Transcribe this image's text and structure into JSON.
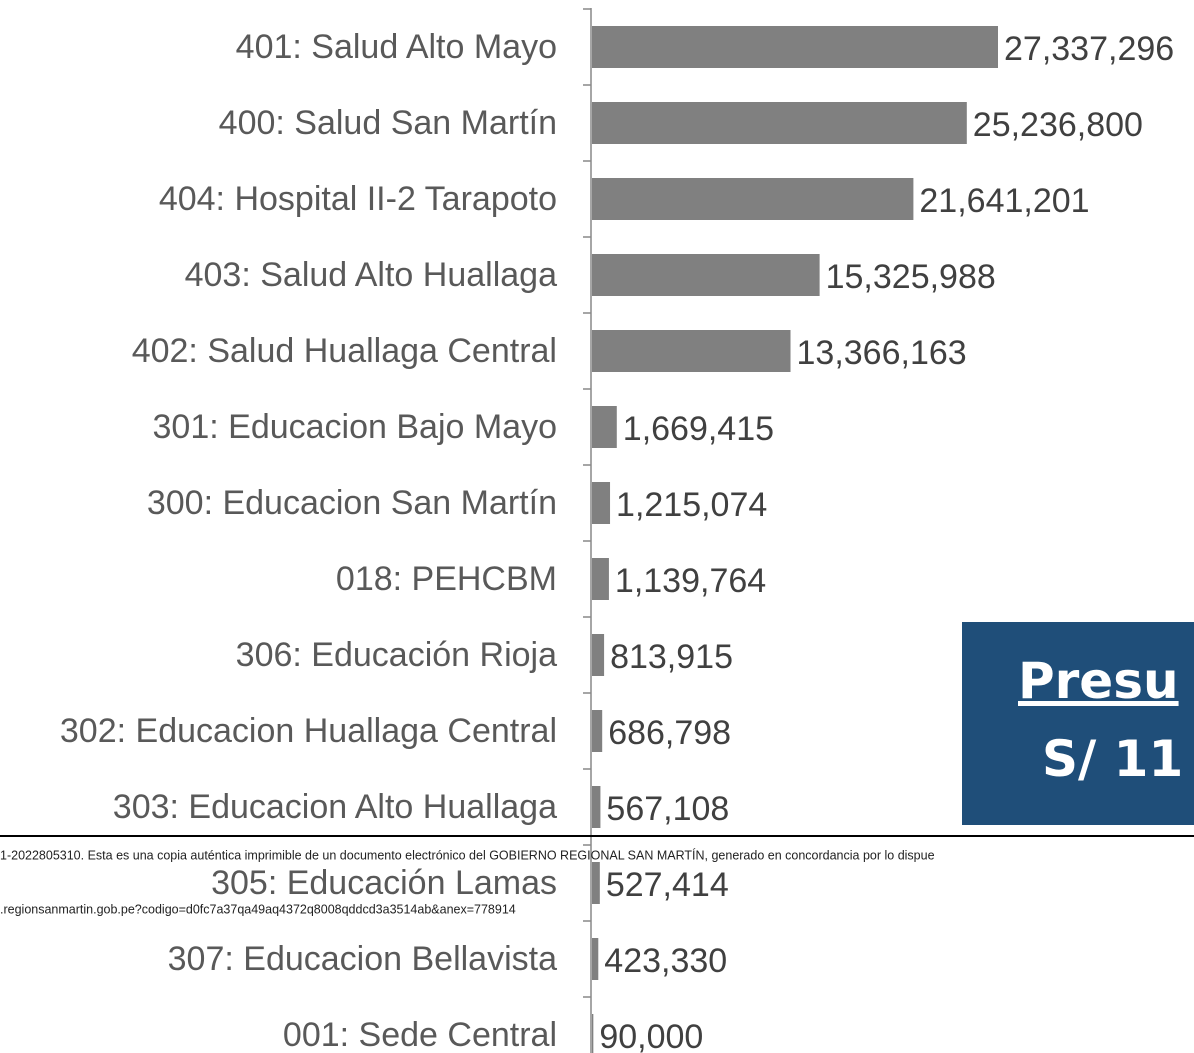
{
  "chart_data": {
    "type": "bar",
    "orientation": "horizontal",
    "categories": [
      "401: Salud Alto Mayo",
      "400: Salud San Martín",
      "404: Hospital II-2 Tarapoto",
      "403: Salud Alto Huallaga",
      "402: Salud Huallaga Central",
      "301: Educacion Bajo Mayo",
      "300: Educacion San Martín",
      "018:  PEHCBM",
      "306: Educación Rioja",
      "302: Educacion Huallaga Central",
      "303: Educacion Alto Huallaga",
      "305: Educación Lamas",
      "307: Educacion Bellavista",
      "001: Sede Central"
    ],
    "values": [
      27337296,
      25236800,
      21641201,
      15325988,
      13366163,
      1669415,
      1215074,
      1139764,
      813915,
      686798,
      567108,
      527414,
      423330,
      90000
    ],
    "value_labels": [
      "27,337,296",
      "25,236,800",
      "21,641,201",
      "15,325,988",
      "13,366,163",
      "1,669,415",
      "1,215,074",
      "1,139,764",
      "813,915",
      "686,798",
      "567,108",
      "527,414",
      "423,330",
      "90,000"
    ],
    "color": "#808080"
  },
  "overlay": {
    "line1": "Presu",
    "line2": "S/ 11"
  },
  "footer": {
    "line1": "1-2022805310. Esta es una copia auténtica imprimible de un documento electrónico del GOBIERNO REGIONAL SAN MARTÍN, generado en concordancia por lo dispue",
    "line2": ".regionsanmartin.gob.pe?codigo=d0fc7a37qa49aq4372q8008qddcd3a3514ab&anex=778914"
  }
}
